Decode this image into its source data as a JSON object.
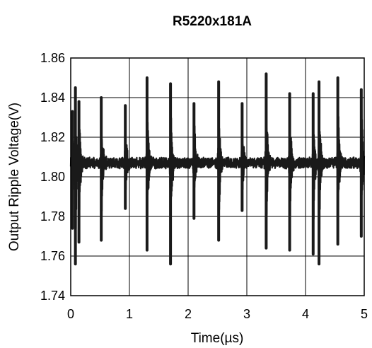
{
  "chart_data": {
    "type": "line",
    "title": "R5220x181A",
    "xlabel": "Time(µs)",
    "ylabel": "Output Ripple Voltage(V)",
    "xlim": [
      0,
      5
    ],
    "ylim": [
      1.74,
      1.86
    ],
    "xticks": [
      0,
      1,
      2,
      3,
      4,
      5
    ],
    "xtick_labels": [
      "0",
      "1",
      "2",
      "3",
      "4",
      "5"
    ],
    "yticks": [
      1.74,
      1.76,
      1.78,
      1.8,
      1.82,
      1.84,
      1.86
    ],
    "ytick_labels": [
      "1.74",
      "1.76",
      "1.78",
      "1.80",
      "1.82",
      "1.84",
      "1.86"
    ],
    "grid": true,
    "baseline": 1.807,
    "series": [
      {
        "color": "#1a1a1a",
        "spikes": [
          {
            "x": 0.03,
            "max": 1.833,
            "min": 1.774
          },
          {
            "x": 0.08,
            "max": 1.845,
            "min": 1.756
          },
          {
            "x": 0.14,
            "max": 1.838,
            "min": 1.767
          },
          {
            "x": 0.52,
            "max": 1.84,
            "min": 1.768
          },
          {
            "x": 0.93,
            "max": 1.836,
            "min": 1.784
          },
          {
            "x": 1.3,
            "max": 1.85,
            "min": 1.763
          },
          {
            "x": 1.7,
            "max": 1.847,
            "min": 1.756
          },
          {
            "x": 2.1,
            "max": 1.837,
            "min": 1.779
          },
          {
            "x": 2.52,
            "max": 1.848,
            "min": 1.768
          },
          {
            "x": 2.92,
            "max": 1.837,
            "min": 1.783
          },
          {
            "x": 3.33,
            "max": 1.852,
            "min": 1.764
          },
          {
            "x": 3.73,
            "max": 1.842,
            "min": 1.763
          },
          {
            "x": 4.13,
            "max": 1.842,
            "min": 1.761
          },
          {
            "x": 4.23,
            "max": 1.848,
            "min": 1.756
          },
          {
            "x": 4.55,
            "max": 1.85,
            "min": 1.766
          },
          {
            "x": 4.95,
            "max": 1.844,
            "min": 1.77
          }
        ]
      }
    ]
  }
}
